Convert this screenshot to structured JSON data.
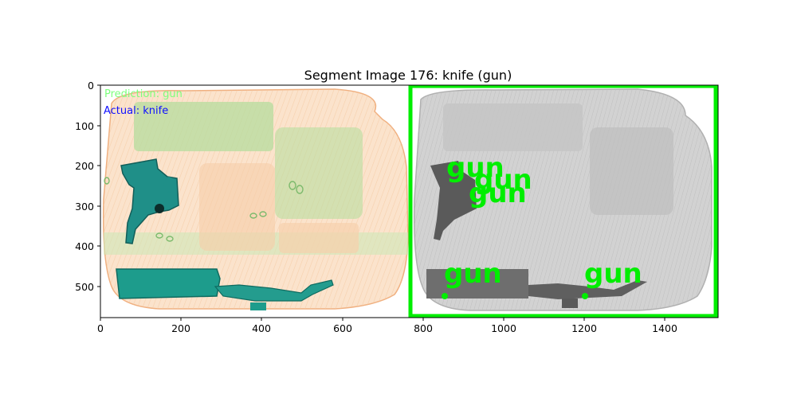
{
  "title": "Segment Image 176: knife (gun)",
  "left_panel": {
    "prediction_label": "Prediction: gun",
    "actual_label": "Actual: knife"
  },
  "right_panel": {
    "detection_labels": [
      "gun",
      "gun",
      "gun",
      "gun",
      "gun"
    ]
  },
  "axes": {
    "x_ticks": [
      "0",
      "200",
      "400",
      "600",
      "800",
      "1000",
      "1200",
      "1400"
    ],
    "y_ticks": [
      "0",
      "100",
      "200",
      "300",
      "400",
      "500"
    ],
    "x_range": [
      0,
      1530
    ],
    "y_range": [
      578,
      0
    ]
  },
  "colors": {
    "prediction_text": "#7dff7d",
    "actual_text": "#1010ff",
    "detection_green": "#00ee00",
    "xray_orange": "#f0b080",
    "xray_green": "#8fcc7a",
    "gun_teal": "#1f8f88",
    "knife_teal": "#1d9c8c",
    "background_gray": "#c8c8c8"
  }
}
